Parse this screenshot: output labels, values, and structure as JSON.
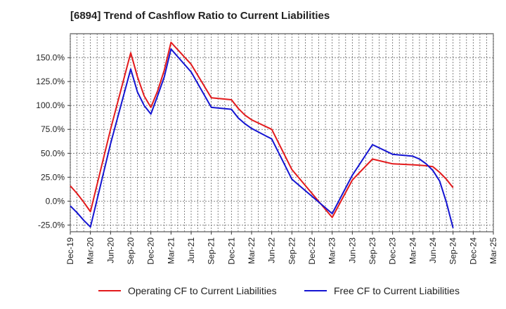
{
  "chart_data": {
    "type": "line",
    "title": "[6894]  Trend of Cashflow Ratio to Current Liabilities",
    "xlabel": "",
    "ylabel": "",
    "ylim": [
      -32,
      175
    ],
    "y_ticks": [
      150,
      125,
      100,
      75,
      50,
      25,
      0,
      -25
    ],
    "y_tick_labels": [
      "150.0%",
      "125.0%",
      "100.0%",
      "75.0%",
      "50.0%",
      "25.0%",
      "0.0%",
      "-25.0%"
    ],
    "x_tick_labels": [
      "Dec-19",
      "Mar-20",
      "Jun-20",
      "Sep-20",
      "Dec-20",
      "Mar-21",
      "Jun-21",
      "Sep-21",
      "Dec-21",
      "Mar-22",
      "Jun-22",
      "Sep-22",
      "Dec-22",
      "Mar-23",
      "Jun-23",
      "Sep-23",
      "Dec-23",
      "Mar-24",
      "Jun-24",
      "Sep-24",
      "Dec-24",
      "Mar-25"
    ],
    "x": [
      "Dec-19",
      "Jan-20",
      "Feb-20",
      "Mar-20",
      "Jun-20",
      "Sep-20",
      "Oct-20",
      "Nov-20",
      "Dec-20",
      "Jan-21",
      "Feb-21",
      "Mar-21",
      "Jun-21",
      "Sep-21",
      "Dec-21",
      "Jan-22",
      "Feb-22",
      "Mar-22",
      "Jun-22",
      "Sep-22",
      "Dec-22",
      "Mar-23",
      "Jun-23",
      "Sep-23",
      "Dec-23",
      "Mar-24",
      "Apr-24",
      "May-24",
      "Jun-24",
      "Jul-24",
      "Aug-24",
      "Sep-24"
    ],
    "grid": true,
    "legend_position": "bottom",
    "series": [
      {
        "name": "Operating CF to Current Liabilities",
        "color": "#e31a1c",
        "values": [
          16,
          8,
          -1,
          -11,
          75,
          155,
          130,
          110,
          98,
          115,
          137,
          166,
          143,
          108,
          106,
          97,
          90,
          85,
          75,
          33,
          8,
          -17,
          22,
          44,
          39,
          38,
          37.5,
          37,
          36,
          30,
          23,
          14
        ]
      },
      {
        "name": "Free CF to Current Liabilities",
        "color": "#1414d2",
        "values": [
          -5,
          -12,
          -20,
          -27,
          60,
          138,
          114,
          100,
          91,
          110,
          130,
          159,
          135,
          98,
          96,
          87,
          81,
          76,
          65,
          23,
          5,
          -13,
          27,
          59,
          49,
          47,
          44,
          39,
          32,
          21,
          -1,
          -28
        ]
      }
    ]
  }
}
